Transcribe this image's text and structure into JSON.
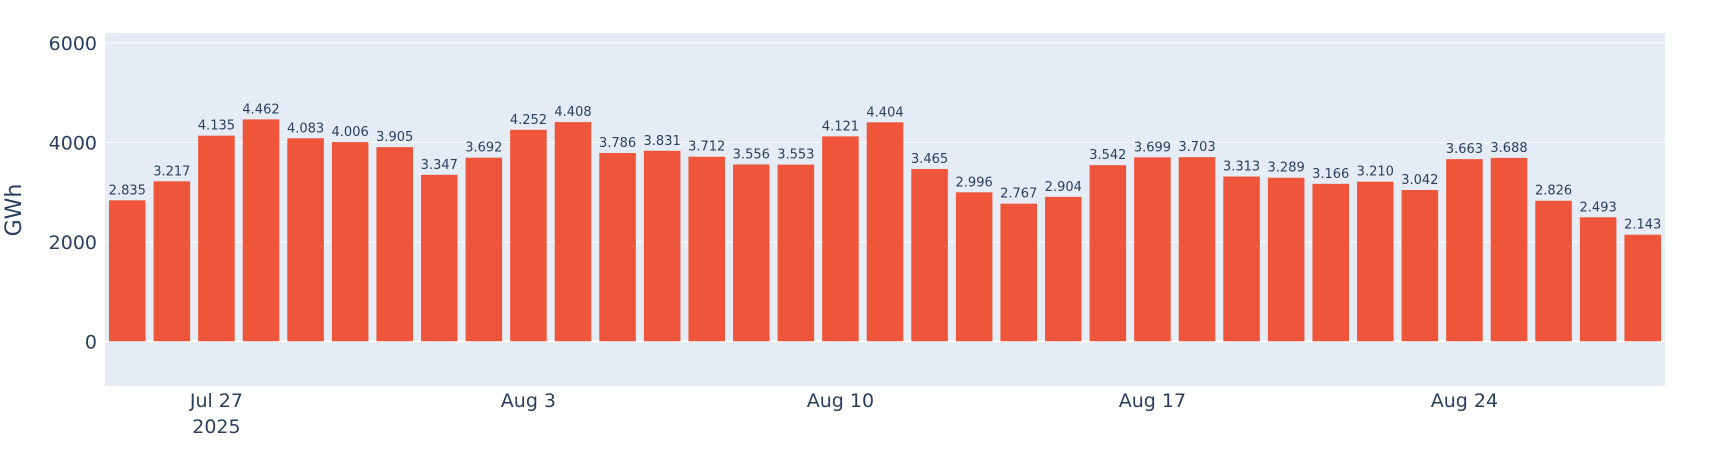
{
  "chart_data": {
    "type": "bar",
    "ylabel": "GWh",
    "ylim": [
      -900,
      6200
    ],
    "yticks": [
      0,
      2000,
      4000,
      6000
    ],
    "grid": true,
    "x_ticks": [
      {
        "date": "2025-07-27",
        "label": "Jul 27",
        "sublabel": "2025"
      },
      {
        "date": "2025-08-03",
        "label": "Aug 3",
        "sublabel": ""
      },
      {
        "date": "2025-08-10",
        "label": "Aug 10",
        "sublabel": ""
      },
      {
        "date": "2025-08-17",
        "label": "Aug 17",
        "sublabel": ""
      },
      {
        "date": "2025-08-24",
        "label": "Aug 24",
        "sublabel": ""
      }
    ],
    "x": [
      "2025-07-25",
      "2025-07-26",
      "2025-07-27",
      "2025-07-28",
      "2025-07-29",
      "2025-07-30",
      "2025-07-31",
      "2025-08-01",
      "2025-08-02",
      "2025-08-03",
      "2025-08-04",
      "2025-08-05",
      "2025-08-06",
      "2025-08-07",
      "2025-08-08",
      "2025-08-09",
      "2025-08-10",
      "2025-08-11",
      "2025-08-12",
      "2025-08-13",
      "2025-08-14",
      "2025-08-15",
      "2025-08-16",
      "2025-08-17",
      "2025-08-18",
      "2025-08-19",
      "2025-08-20",
      "2025-08-21",
      "2025-08-22",
      "2025-08-23",
      "2025-08-24",
      "2025-08-25",
      "2025-08-26",
      "2025-08-27",
      "2025-08-28"
    ],
    "values": [
      2835,
      3217,
      4135,
      4462,
      4083,
      4006,
      3905,
      3347,
      3692,
      4252,
      4408,
      3786,
      3831,
      3712,
      3556,
      3553,
      4121,
      4404,
      3465,
      2996,
      2767,
      2904,
      3542,
      3699,
      3703,
      3313,
      3289,
      3166,
      3210,
      3042,
      3663,
      3688,
      2826,
      2493,
      2143
    ],
    "labels": [
      "2.835",
      "3.217",
      "4.135",
      "4.462",
      "4.083",
      "4.006",
      "3.905",
      "3.347",
      "3.692",
      "4.252",
      "4.408",
      "3.786",
      "3.831",
      "3.712",
      "3.556",
      "3.553",
      "4.121",
      "4.404",
      "3.465",
      "2.996",
      "2.767",
      "2.904",
      "3.542",
      "3.699",
      "3.703",
      "3.313",
      "3.289",
      "3.166",
      "3.210",
      "3.042",
      "3.663",
      "3.688",
      "2.826",
      "2.493",
      "2.143"
    ],
    "colors": {
      "bar": "#ef553b",
      "plot_bg": "#e5ecf6",
      "grid": "#ffffff",
      "text": "#2a3f5f"
    }
  }
}
